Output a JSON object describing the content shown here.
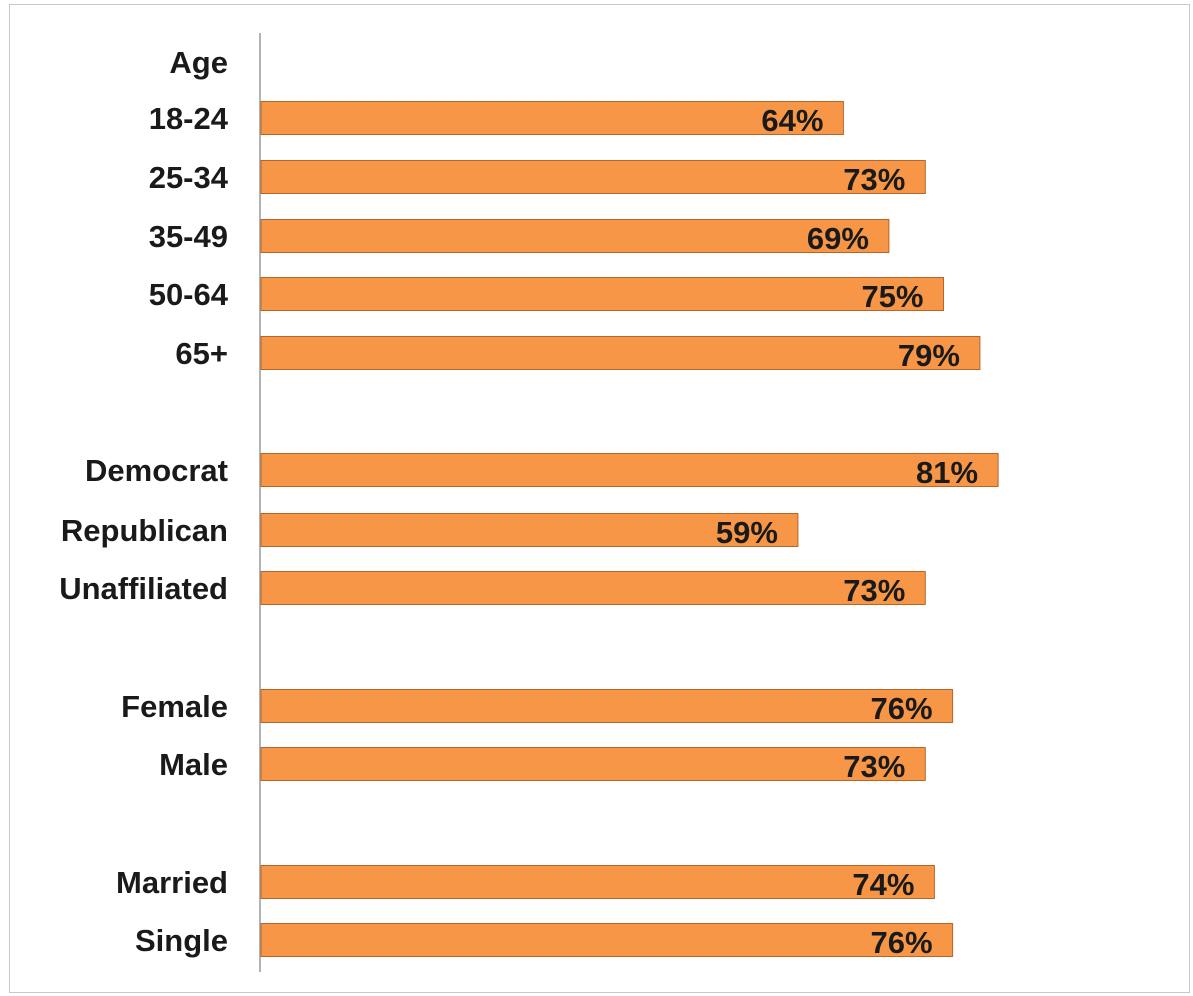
{
  "chart_data": {
    "type": "bar",
    "orientation": "horizontal",
    "title": "",
    "xlabel": "",
    "ylabel": "",
    "xlim": [
      0,
      100
    ],
    "grid": false,
    "legend": "none",
    "bar_color": "#F79646",
    "bar_outline_color": "#B7652B",
    "value_suffix": "%",
    "headers": [
      "Age"
    ],
    "categories": [
      "18-24",
      "25-34",
      "35-49",
      "50-64",
      "65+",
      "Democrat",
      "Republican",
      "Unaffiliated",
      "Female",
      "Male",
      "Married",
      "Single"
    ],
    "values": [
      64,
      73,
      69,
      75,
      79,
      81,
      59,
      73,
      76,
      73,
      74,
      76
    ],
    "value_labels": [
      "64%",
      "73%",
      "69%",
      "75%",
      "79%",
      "81%",
      "59%",
      "73%",
      "76%",
      "73%",
      "74%",
      "76%"
    ]
  }
}
